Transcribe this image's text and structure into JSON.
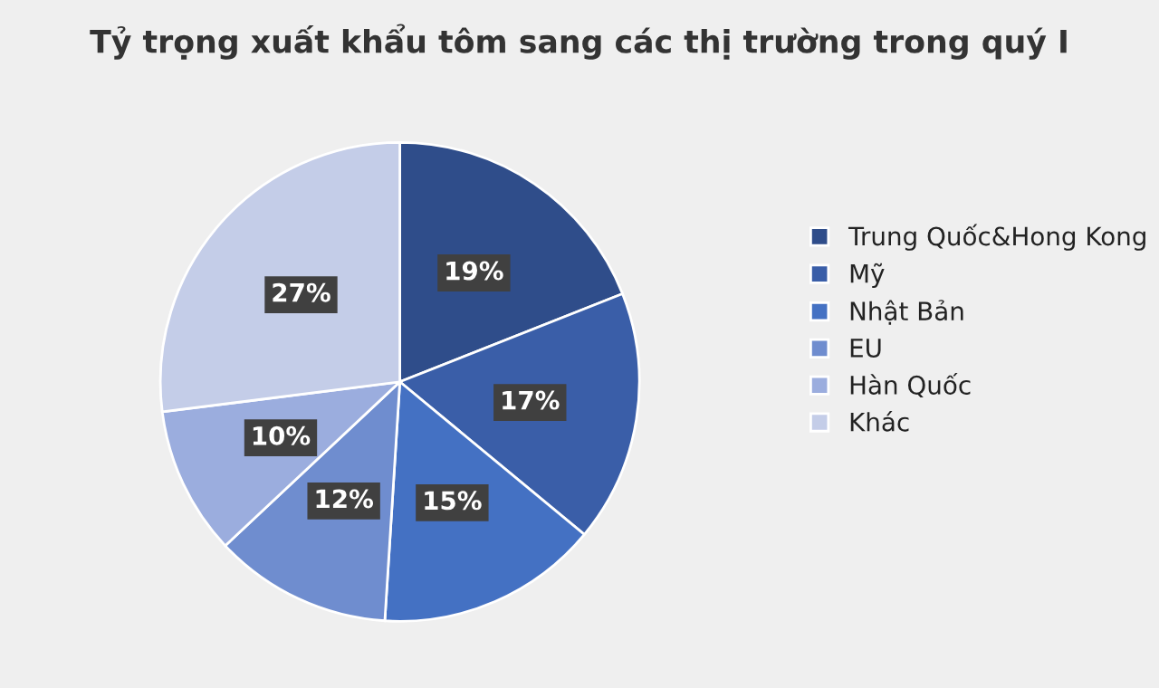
{
  "chart_data": {
    "type": "pie",
    "title": "Tỷ trọng xuất khẩu tôm sang các thị trường trong quý I",
    "categories": [
      "Trung Quốc&Hong Kong",
      "Mỹ",
      "Nhật Bản",
      "EU",
      "Hàn Quốc",
      "Khác"
    ],
    "values": [
      19,
      17,
      15,
      12,
      10,
      27
    ],
    "colors": [
      "#2f4d8a",
      "#3a5ea8",
      "#4471c3",
      "#6f8dcf",
      "#9badde",
      "#c4cde8"
    ],
    "value_labels": [
      "19%",
      "17%",
      "15%",
      "12%",
      "10%",
      "27%"
    ],
    "legend": "right"
  }
}
